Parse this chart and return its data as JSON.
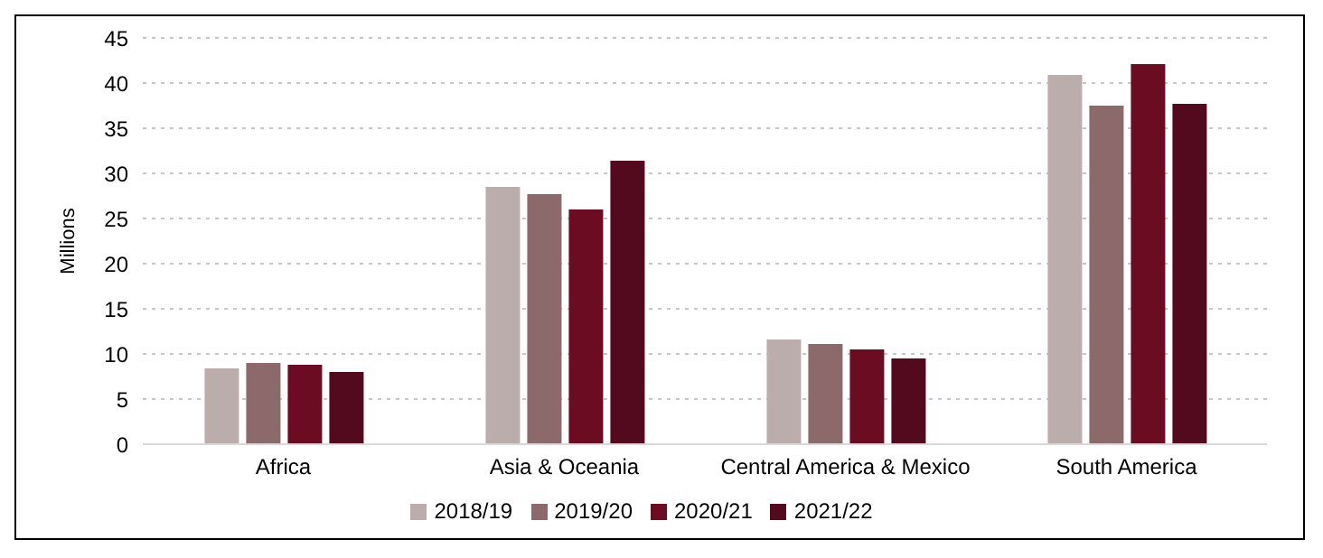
{
  "chart_data": {
    "type": "bar",
    "ylabel": "Millions",
    "categories": [
      "Africa",
      "Asia & Oceania",
      "Central America & Mexico",
      "South America"
    ],
    "series": [
      {
        "name": "2018/19",
        "color": "#bcadad",
        "values": [
          8.4,
          28.5,
          11.6,
          40.9
        ]
      },
      {
        "name": "2019/20",
        "color": "#8c6a6c",
        "values": [
          9.0,
          27.7,
          11.1,
          37.5
        ]
      },
      {
        "name": "2020/21",
        "color": "#6b0c22",
        "values": [
          8.8,
          26.0,
          10.5,
          42.1
        ]
      },
      {
        "name": "2021/22",
        "color": "#540a1e",
        "values": [
          8.0,
          31.4,
          9.5,
          37.7
        ]
      }
    ],
    "ylim": [
      0,
      45
    ],
    "yticks": [
      0,
      5,
      10,
      15,
      20,
      25,
      30,
      35,
      40,
      45
    ],
    "grid": "y",
    "legend": "bottom"
  }
}
